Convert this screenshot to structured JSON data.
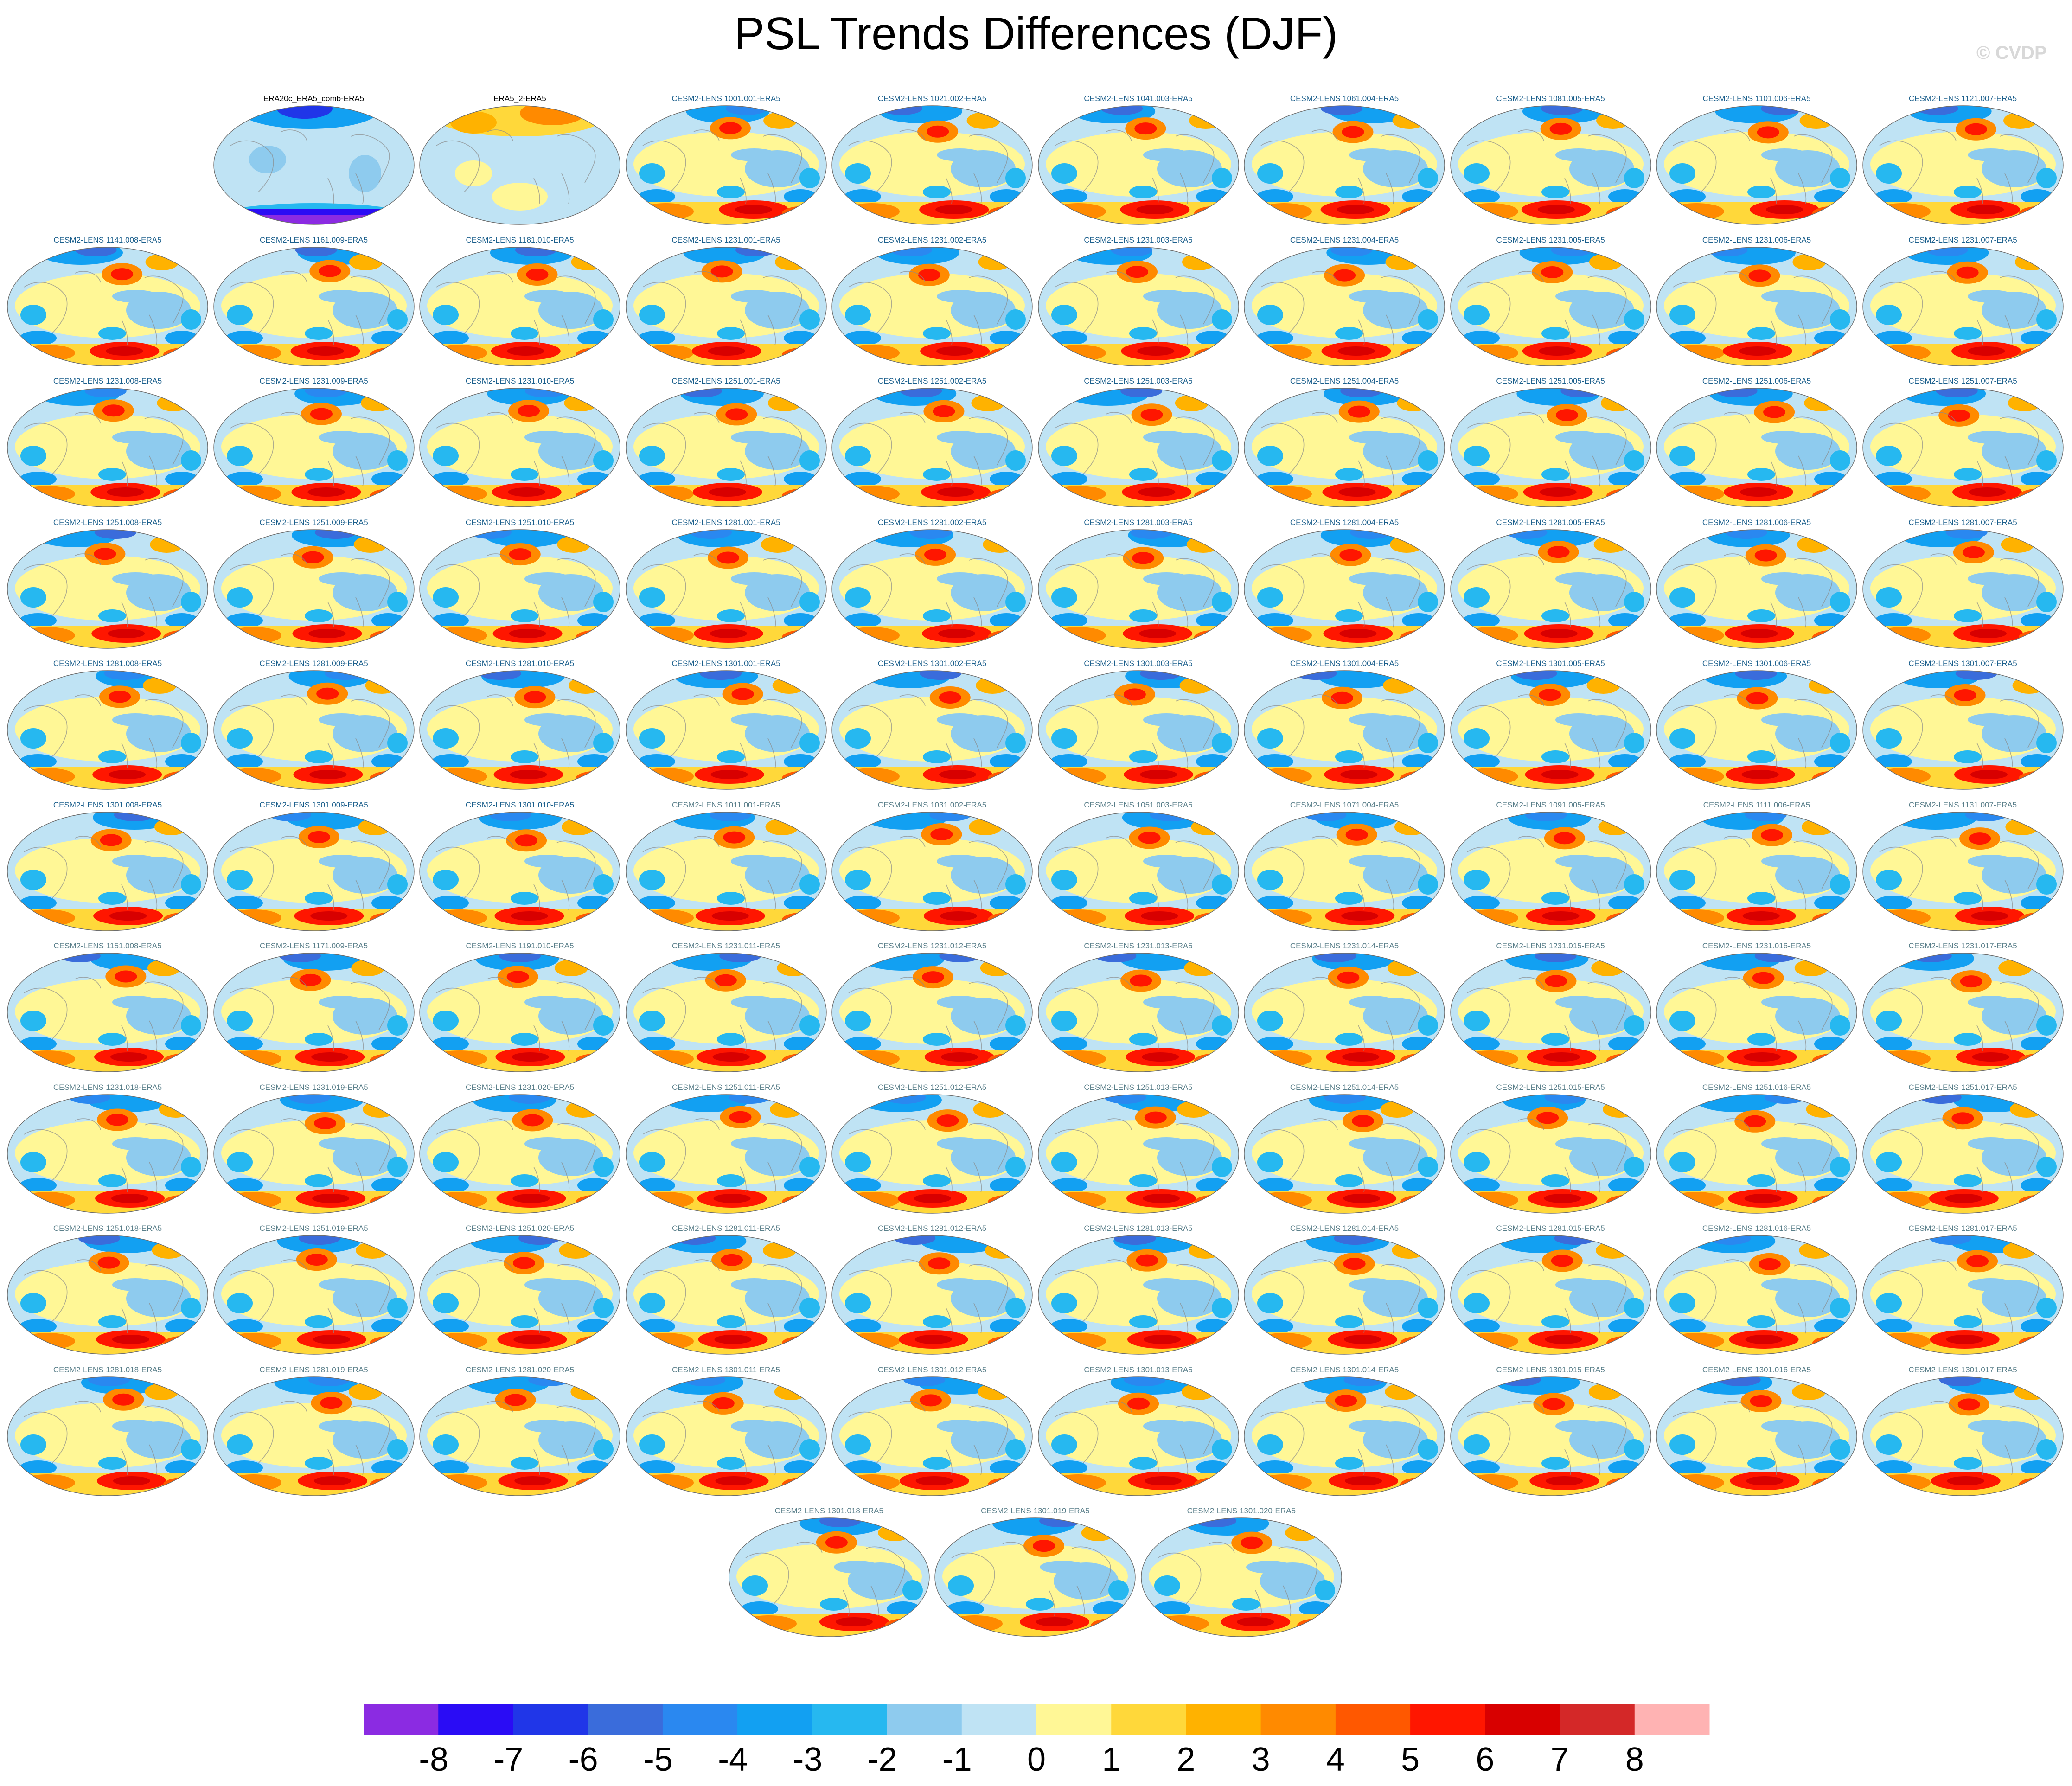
{
  "figure": {
    "title": "PSL Trends Differences (DJF)",
    "watermark": "© CVDP"
  },
  "chart_data": {
    "type": "heatmap",
    "title": "PSL Trends Differences (DJF)",
    "projection": "global elliptical map panels with coastlines",
    "panel_titles": [
      "ERA20c_ERA5_comb-ERA5",
      "ERA5_2-ERA5",
      "CESM2-LENS 1001.001-ERA5",
      "CESM2-LENS 1021.002-ERA5",
      "CESM2-LENS 1041.003-ERA5",
      "CESM2-LENS 1061.004-ERA5",
      "CESM2-LENS 1081.005-ERA5",
      "CESM2-LENS 1101.006-ERA5",
      "CESM2-LENS 1121.007-ERA5",
      "CESM2-LENS 1141.008-ERA5",
      "CESM2-LENS 1161.009-ERA5",
      "CESM2-LENS 1181.010-ERA5",
      "CESM2-LENS 1231.001-ERA5",
      "CESM2-LENS 1231.002-ERA5",
      "CESM2-LENS 1231.003-ERA5",
      "CESM2-LENS 1231.004-ERA5",
      "CESM2-LENS 1231.005-ERA5",
      "CESM2-LENS 1231.006-ERA5",
      "CESM2-LENS 1231.007-ERA5",
      "CESM2-LENS 1231.008-ERA5",
      "CESM2-LENS 1231.009-ERA5",
      "CESM2-LENS 1231.010-ERA5",
      "CESM2-LENS 1251.001-ERA5",
      "CESM2-LENS 1251.002-ERA5",
      "CESM2-LENS 1251.003-ERA5",
      "CESM2-LENS 1251.004-ERA5",
      "CESM2-LENS 1251.005-ERA5",
      "CESM2-LENS 1251.006-ERA5",
      "CESM2-LENS 1251.007-ERA5",
      "CESM2-LENS 1251.008-ERA5",
      "CESM2-LENS 1251.009-ERA5",
      "CESM2-LENS 1251.010-ERA5",
      "CESM2-LENS 1281.001-ERA5",
      "CESM2-LENS 1281.002-ERA5",
      "CESM2-LENS 1281.003-ERA5",
      "CESM2-LENS 1281.004-ERA5",
      "CESM2-LENS 1281.005-ERA5",
      "CESM2-LENS 1281.006-ERA5",
      "CESM2-LENS 1281.007-ERA5",
      "CESM2-LENS 1281.008-ERA5",
      "CESM2-LENS 1281.009-ERA5",
      "CESM2-LENS 1281.010-ERA5",
      "CESM2-LENS 1301.001-ERA5",
      "CESM2-LENS 1301.002-ERA5",
      "CESM2-LENS 1301.003-ERA5",
      "CESM2-LENS 1301.004-ERA5",
      "CESM2-LENS 1301.005-ERA5",
      "CESM2-LENS 1301.006-ERA5",
      "CESM2-LENS 1301.007-ERA5",
      "CESM2-LENS 1301.008-ERA5",
      "CESM2-LENS 1301.009-ERA5",
      "CESM2-LENS 1301.010-ERA5",
      "CESM2-LENS 1011.001-ERA5",
      "CESM2-LENS 1031.002-ERA5",
      "CESM2-LENS 1051.003-ERA5",
      "CESM2-LENS 1071.004-ERA5",
      "CESM2-LENS 1091.005-ERA5",
      "CESM2-LENS 1111.006-ERA5",
      "CESM2-LENS 1131.007-ERA5",
      "CESM2-LENS 1151.008-ERA5",
      "CESM2-LENS 1171.009-ERA5",
      "CESM2-LENS 1191.010-ERA5",
      "CESM2-LENS 1231.011-ERA5",
      "CESM2-LENS 1231.012-ERA5",
      "CESM2-LENS 1231.013-ERA5",
      "CESM2-LENS 1231.014-ERA5",
      "CESM2-LENS 1231.015-ERA5",
      "CESM2-LENS 1231.016-ERA5",
      "CESM2-LENS 1231.017-ERA5",
      "CESM2-LENS 1231.018-ERA5",
      "CESM2-LENS 1231.019-ERA5",
      "CESM2-LENS 1231.020-ERA5",
      "CESM2-LENS 1251.011-ERA5",
      "CESM2-LENS 1251.012-ERA5",
      "CESM2-LENS 1251.013-ERA5",
      "CESM2-LENS 1251.014-ERA5",
      "CESM2-LENS 1251.015-ERA5",
      "CESM2-LENS 1251.016-ERA5",
      "CESM2-LENS 1251.017-ERA5",
      "CESM2-LENS 1251.018-ERA5",
      "CESM2-LENS 1251.019-ERA5",
      "CESM2-LENS 1251.020-ERA5",
      "CESM2-LENS 1281.011-ERA5",
      "CESM2-LENS 1281.012-ERA5",
      "CESM2-LENS 1281.013-ERA5",
      "CESM2-LENS 1281.014-ERA5",
      "CESM2-LENS 1281.015-ERA5",
      "CESM2-LENS 1281.016-ERA5",
      "CESM2-LENS 1281.017-ERA5",
      "CESM2-LENS 1281.018-ERA5",
      "CESM2-LENS 1281.019-ERA5",
      "CESM2-LENS 1281.020-ERA5",
      "CESM2-LENS 1301.011-ERA5",
      "CESM2-LENS 1301.012-ERA5",
      "CESM2-LENS 1301.013-ERA5",
      "CESM2-LENS 1301.014-ERA5",
      "CESM2-LENS 1301.015-ERA5",
      "CESM2-LENS 1301.016-ERA5",
      "CESM2-LENS 1301.017-ERA5",
      "CESM2-LENS 1301.018-ERA5",
      "CESM2-LENS 1301.019-ERA5",
      "CESM2-LENS 1301.020-ERA5"
    ],
    "panel_title_colors": {
      "observations": "#000000",
      "first_group": "#1b5f8c",
      "second_group": "#5a7f8a"
    },
    "colorbar": {
      "levels": [
        -8,
        -7,
        -6,
        -5,
        -4,
        -3,
        -2,
        -1,
        0,
        1,
        2,
        3,
        4,
        5,
        6,
        7,
        8
      ],
      "colors": [
        "#8b2be2",
        "#2a0cf5",
        "#2036e8",
        "#3a6cdb",
        "#2a88f0",
        "#12a0f2",
        "#26b8f0",
        "#8ecbee",
        "#bfe3f4",
        "#fff796",
        "#ffd83a",
        "#ffb200",
        "#ff8a00",
        "#ff5800",
        "#ff1600",
        "#d80000",
        "#d42828",
        "#ffb3b3"
      ],
      "orientation": "horizontal",
      "placement": "bottom"
    }
  }
}
